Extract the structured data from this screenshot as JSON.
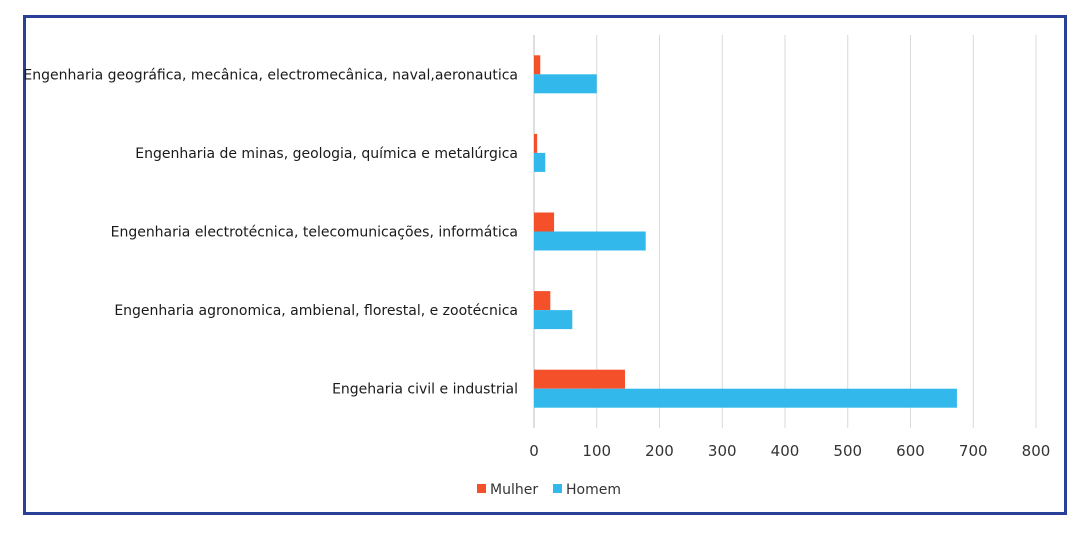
{
  "chart_data": {
    "type": "bar",
    "orientation": "horizontal",
    "categories": [
      "Engenharia geográfica, mecânica, electromecânica, naval,aeronautica",
      "Engenharia de minas, geologia, química e metalúrgica",
      "Engenharia electrotécnica, telecomunicações, informática",
      "Engenharia agronomica, ambienal, florestal, e zootécnica",
      "Engeharia civil e industrial"
    ],
    "series": [
      {
        "name": "Mulher",
        "color": "#f4502a",
        "values": [
          10,
          5,
          32,
          26,
          145
        ]
      },
      {
        "name": "Homem",
        "color": "#33b8eb",
        "values": [
          100,
          18,
          178,
          61,
          674
        ]
      }
    ],
    "xlim": [
      0,
      800
    ],
    "xticks": [
      "0",
      "100",
      "200",
      "300",
      "400",
      "500",
      "600",
      "700",
      "800"
    ],
    "grid": true,
    "legend_position": "bottom"
  }
}
